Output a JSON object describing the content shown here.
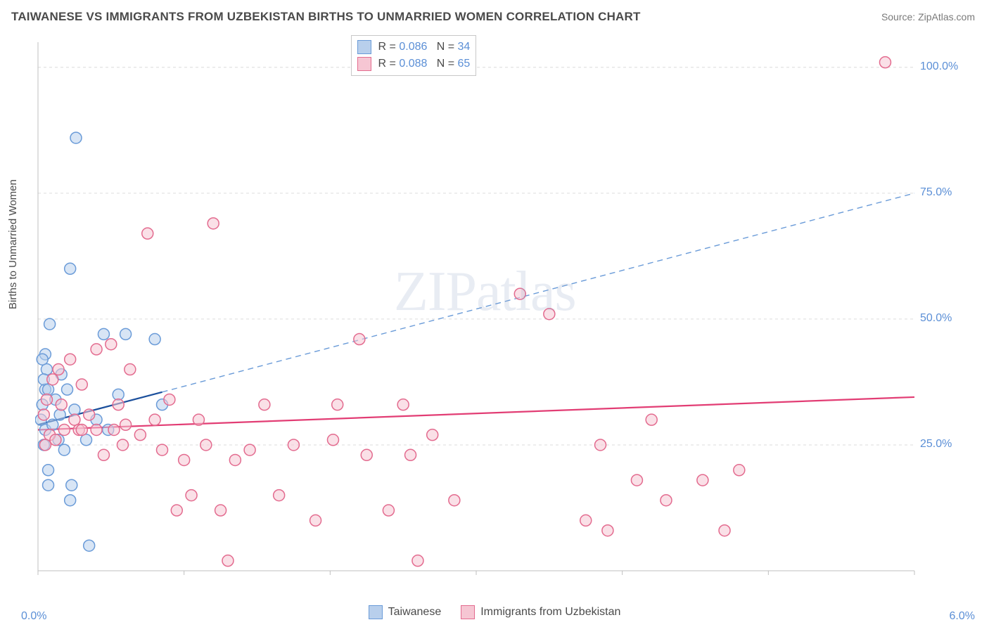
{
  "title": "TAIWANESE VS IMMIGRANTS FROM UZBEKISTAN BIRTHS TO UNMARRIED WOMEN CORRELATION CHART",
  "source": "Source: ZipAtlas.com",
  "ylabel": "Births to Unmarried Women",
  "watermark": "ZIPatlas",
  "chart": {
    "type": "scatter",
    "xlim": [
      0.0,
      6.0
    ],
    "ylim": [
      0.0,
      105.0
    ],
    "xtick_min_label": "0.0%",
    "xtick_max_label": "6.0%",
    "yticks": [
      25.0,
      50.0,
      75.0,
      100.0
    ],
    "ytick_labels": [
      "25.0%",
      "50.0%",
      "75.0%",
      "100.0%"
    ],
    "background_color": "#ffffff",
    "grid_color": "#dcdcdc",
    "axis_color": "#bfbfbf",
    "marker_radius": 8,
    "marker_stroke_width": 1.5,
    "watermark_color": "rgba(150,170,200,0.22)",
    "series": [
      {
        "name": "Taiwanese",
        "fill": "#b8cfec",
        "stroke": "#6a9bd8",
        "trend_solid": {
          "x1": 0.0,
          "y1": 29.0,
          "x2": 0.85,
          "y2": 35.5,
          "color": "#1b4f9c",
          "width": 2.2
        },
        "trend_dash": {
          "x1": 0.85,
          "y1": 35.5,
          "x2": 6.0,
          "y2": 75.0,
          "color": "#6a9bd8",
          "width": 1.4
        },
        "R": "0.086",
        "N": "34",
        "points": [
          [
            0.05,
            28
          ],
          [
            0.05,
            36
          ],
          [
            0.06,
            40
          ],
          [
            0.05,
            43
          ],
          [
            0.08,
            49
          ],
          [
            0.07,
            20
          ],
          [
            0.07,
            17
          ],
          [
            0.02,
            30
          ],
          [
            0.03,
            33
          ],
          [
            0.04,
            38
          ],
          [
            0.03,
            42
          ],
          [
            0.07,
            36
          ],
          [
            0.1,
            29
          ],
          [
            0.12,
            34
          ],
          [
            0.14,
            26
          ],
          [
            0.15,
            31
          ],
          [
            0.16,
            39
          ],
          [
            0.18,
            24
          ],
          [
            0.22,
            14
          ],
          [
            0.23,
            17
          ],
          [
            0.2,
            36
          ],
          [
            0.25,
            32
          ],
          [
            0.33,
            26
          ],
          [
            0.35,
            5
          ],
          [
            0.4,
            30
          ],
          [
            0.45,
            47
          ],
          [
            0.48,
            28
          ],
          [
            0.55,
            35
          ],
          [
            0.6,
            47
          ],
          [
            0.8,
            46
          ],
          [
            0.85,
            33
          ],
          [
            0.22,
            60
          ],
          [
            0.26,
            86
          ],
          [
            0.04,
            25
          ]
        ]
      },
      {
        "name": "Immigrants from Uzbekistan",
        "fill": "#f6c6d3",
        "stroke": "#e36b8f",
        "trend_solid": {
          "x1": 0.0,
          "y1": 28.0,
          "x2": 6.0,
          "y2": 34.5,
          "color": "#e23d74",
          "width": 2.2
        },
        "trend_dash": null,
        "R": "0.088",
        "N": "65",
        "points": [
          [
            0.04,
            31
          ],
          [
            0.06,
            34
          ],
          [
            0.08,
            27
          ],
          [
            0.1,
            38
          ],
          [
            0.12,
            26
          ],
          [
            0.14,
            40
          ],
          [
            0.16,
            33
          ],
          [
            0.18,
            28
          ],
          [
            0.22,
            42
          ],
          [
            0.25,
            30
          ],
          [
            0.28,
            28
          ],
          [
            0.3,
            37
          ],
          [
            0.35,
            31
          ],
          [
            0.4,
            44
          ],
          [
            0.45,
            23
          ],
          [
            0.5,
            45
          ],
          [
            0.52,
            28
          ],
          [
            0.55,
            33
          ],
          [
            0.58,
            25
          ],
          [
            0.63,
            40
          ],
          [
            0.7,
            27
          ],
          [
            0.75,
            67
          ],
          [
            0.8,
            30
          ],
          [
            0.85,
            24
          ],
          [
            0.9,
            34
          ],
          [
            0.95,
            12
          ],
          [
            1.0,
            22
          ],
          [
            1.05,
            15
          ],
          [
            1.1,
            30
          ],
          [
            1.15,
            25
          ],
          [
            1.2,
            69
          ],
          [
            1.25,
            12
          ],
          [
            1.3,
            2
          ],
          [
            1.35,
            22
          ],
          [
            1.45,
            24
          ],
          [
            1.55,
            33
          ],
          [
            1.65,
            15
          ],
          [
            1.75,
            25
          ],
          [
            1.9,
            10
          ],
          [
            2.02,
            26
          ],
          [
            2.05,
            33
          ],
          [
            2.2,
            46
          ],
          [
            2.25,
            23
          ],
          [
            2.4,
            12
          ],
          [
            2.5,
            33
          ],
          [
            2.55,
            23
          ],
          [
            2.6,
            2
          ],
          [
            2.7,
            27
          ],
          [
            2.85,
            14
          ],
          [
            3.3,
            55
          ],
          [
            3.5,
            51
          ],
          [
            3.75,
            10
          ],
          [
            3.85,
            25
          ],
          [
            3.9,
            8
          ],
          [
            4.1,
            18
          ],
          [
            4.2,
            30
          ],
          [
            4.3,
            14
          ],
          [
            4.55,
            18
          ],
          [
            4.7,
            8
          ],
          [
            4.8,
            20
          ],
          [
            5.8,
            101
          ],
          [
            0.05,
            25
          ],
          [
            0.3,
            28
          ],
          [
            0.6,
            29
          ],
          [
            0.4,
            28
          ]
        ]
      }
    ]
  },
  "legend_top": {
    "rows": [
      {
        "swatch_fill": "#b8cfec",
        "swatch_stroke": "#6a9bd8",
        "R_label": "R =",
        "R": "0.086",
        "N_label": "N =",
        "N": "34"
      },
      {
        "swatch_fill": "#f6c6d3",
        "swatch_stroke": "#e36b8f",
        "R_label": "R =",
        "R": "0.088",
        "N_label": "N =",
        "N": "65"
      }
    ]
  },
  "legend_bottom": {
    "items": [
      {
        "swatch_fill": "#b8cfec",
        "swatch_stroke": "#6a9bd8",
        "label": "Taiwanese"
      },
      {
        "swatch_fill": "#f6c6d3",
        "swatch_stroke": "#e36b8f",
        "label": "Immigrants from Uzbekistan"
      }
    ]
  }
}
